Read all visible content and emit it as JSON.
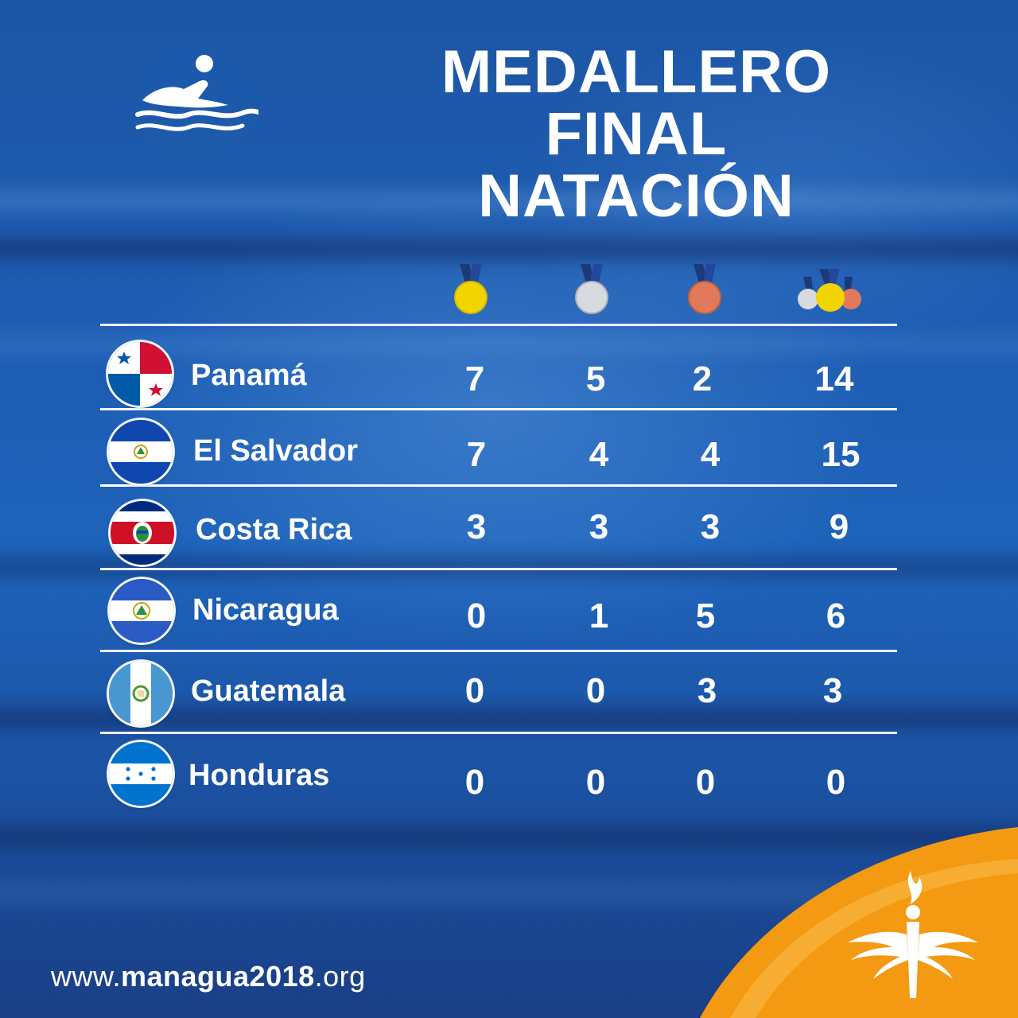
{
  "header": {
    "title_line1": "MEDALLERO FINAL",
    "title_line2": "NATACIÓN",
    "sport_icon": "swimmer-icon"
  },
  "medal_icons": [
    "gold-medal-icon",
    "silver-medal-icon",
    "bronze-medal-icon",
    "total-medals-icon"
  ],
  "colors": {
    "gold": "#f2d400",
    "silver": "#cfd2d8",
    "bronze": "#e07a5a",
    "ribbon": "#1c3a7a",
    "orange": "#f39a12",
    "background": "#1e5db3"
  },
  "standings": [
    {
      "country": "Panamá",
      "flag": "panama-flag-icon",
      "gold": "7",
      "silver": "5",
      "bronze": "2",
      "total": "14"
    },
    {
      "country": "El Salvador",
      "flag": "el-salvador-flag-icon",
      "gold": "7",
      "silver": "4",
      "bronze": "4",
      "total": "15"
    },
    {
      "country": "Costa Rica",
      "flag": "costa-rica-flag-icon",
      "gold": "3",
      "silver": "3",
      "bronze": "3",
      "total": "9"
    },
    {
      "country": "Nicaragua",
      "flag": "nicaragua-flag-icon",
      "gold": "0",
      "silver": "1",
      "bronze": "5",
      "total": "6"
    },
    {
      "country": "Guatemala",
      "flag": "guatemala-flag-icon",
      "gold": "0",
      "silver": "0",
      "bronze": "3",
      "total": "3"
    },
    {
      "country": "Honduras",
      "flag": "honduras-flag-icon",
      "gold": "0",
      "silver": "0",
      "bronze": "0",
      "total": "0"
    }
  ],
  "footer": {
    "url_prefix": "www.",
    "url_bold": "managua2018",
    "url_suffix": ".org",
    "logo": "torch-wings-logo-icon"
  }
}
